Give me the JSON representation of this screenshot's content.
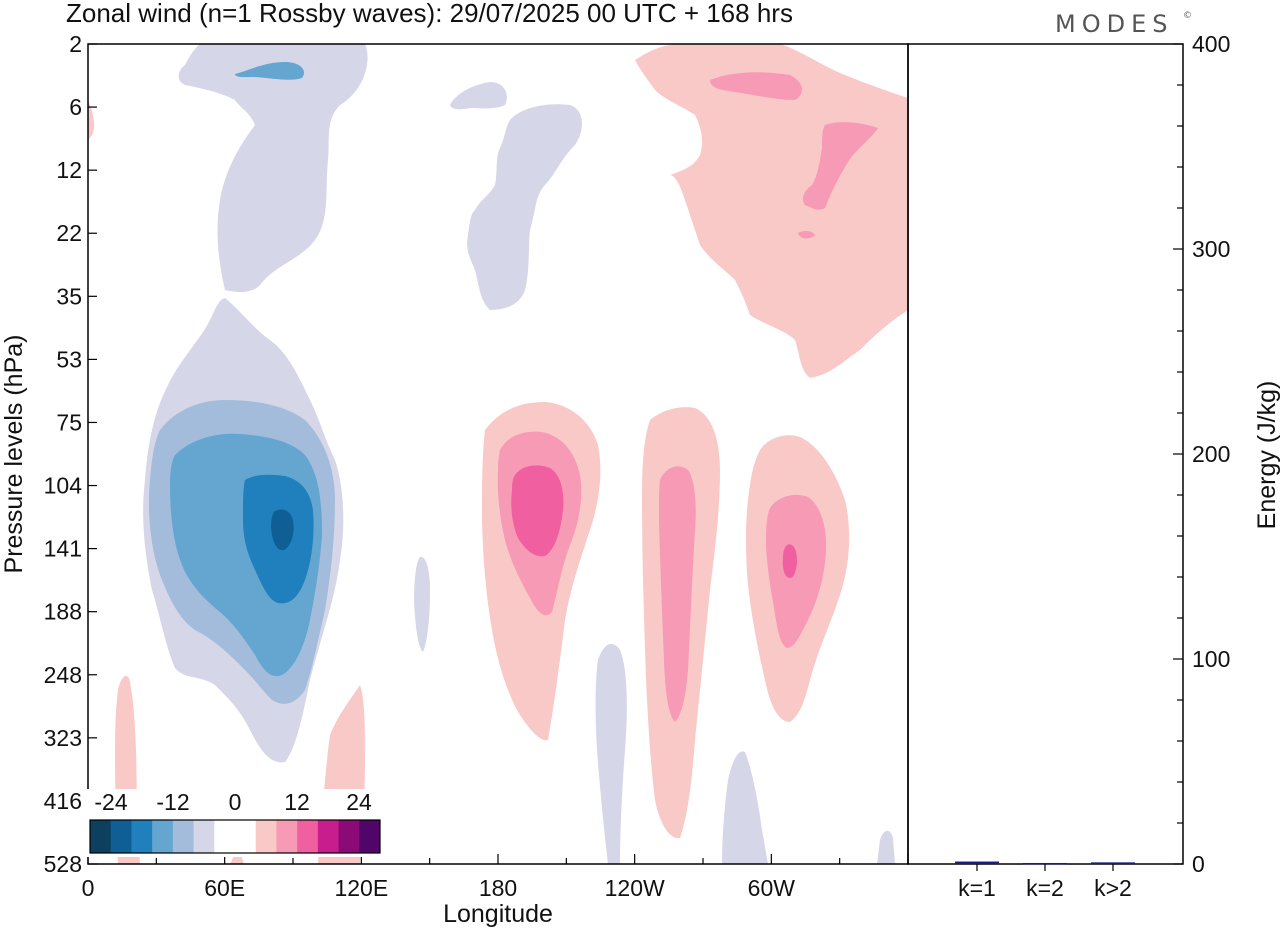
{
  "chart_data": {
    "type": "contour",
    "title": "Zonal wind (n=1 Rossby waves):  29/07/2025  00 UTC  + 168 hrs",
    "brand": "MODES",
    "brand_mark": "©",
    "xlabel": "Longitude",
    "ylabel": "Pressure levels (hPa)",
    "x_ticks": [
      {
        "lon": 0,
        "label": "0"
      },
      {
        "lon": 60,
        "label": "60E"
      },
      {
        "lon": 120,
        "label": "120E"
      },
      {
        "lon": 180,
        "label": "180"
      },
      {
        "lon": 240,
        "label": "120W"
      },
      {
        "lon": 300,
        "label": "60W"
      }
    ],
    "y_levels": [
      2,
      6,
      12,
      22,
      35,
      53,
      75,
      104,
      141,
      188,
      248,
      323,
      416,
      528
    ],
    "y_labels": [
      "2",
      "6",
      "12",
      "22",
      "35",
      "53",
      "75",
      "104",
      "141",
      "188",
      "248",
      "323",
      "416",
      "528"
    ],
    "colorbar": {
      "labels": [
        "-24",
        "-12",
        "0",
        "12",
        "24"
      ],
      "colors": [
        "#0d3f5e",
        "#0f5f96",
        "#1f80bd",
        "#65a6d1",
        "#a3bcdc",
        "#d5d6e8",
        "#ffffff",
        "#ffffff",
        "#f8c9c6",
        "#f79ab5",
        "#f060a0",
        "#c81d8c",
        "#8c0a78",
        "#520569"
      ]
    },
    "contour_features": [
      {
        "sign": "negative",
        "lon_center": 85,
        "level_center": 141,
        "peak_ms": -21
      },
      {
        "sign": "positive",
        "lon_center": 190,
        "level_center": 120,
        "peak_ms": 10
      },
      {
        "sign": "positive",
        "lon_center": 258,
        "level_center": 141,
        "peak_ms": 8
      },
      {
        "sign": "positive",
        "lon_center": 310,
        "level_center": 141,
        "peak_ms": 9
      },
      {
        "sign": "negative",
        "lon_center": 80,
        "level_center": 12,
        "peak_ms": -4
      },
      {
        "sign": "positive",
        "lon_center": 325,
        "level_center": 12,
        "peak_ms": 6
      }
    ],
    "energy_panel": {
      "ylabel": "Energy (J/kg)",
      "ylim": [
        0,
        400
      ],
      "y_ticks": [
        0,
        100,
        200,
        300,
        400
      ],
      "categories": [
        "k=1",
        "k=2",
        "k>2"
      ],
      "values": [
        1.2,
        0.5,
        0.8
      ],
      "bar_color": "#1a1a80"
    }
  }
}
